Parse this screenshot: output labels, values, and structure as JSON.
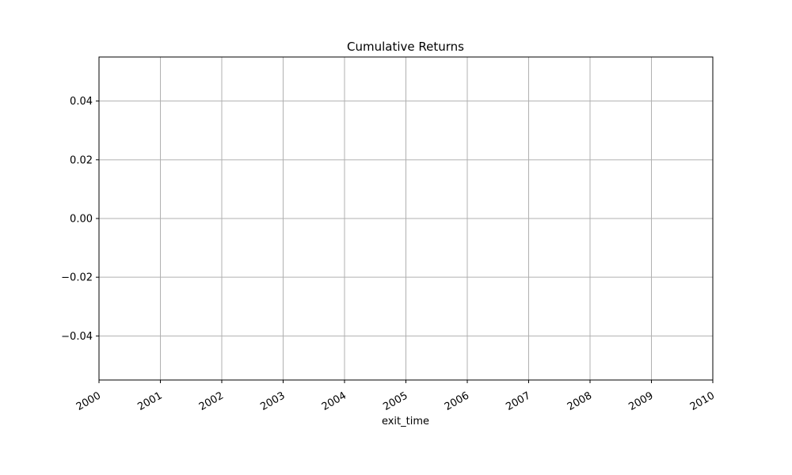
{
  "chart_data": {
    "type": "line",
    "title": "Cumulative Returns",
    "xlabel": "exit_time",
    "ylabel": "",
    "x_ticks": [
      "2000",
      "2001",
      "2002",
      "2003",
      "2004",
      "2005",
      "2006",
      "2007",
      "2008",
      "2009",
      "2010"
    ],
    "xlim": [
      "2000",
      "2010"
    ],
    "y_ticks": [
      0.04,
      0.02,
      0.0,
      -0.02,
      -0.04
    ],
    "y_tick_labels": [
      "0.04",
      "0.02",
      "0.00",
      "−0.02",
      "−0.04"
    ],
    "ylim": [
      -0.055,
      0.055
    ],
    "grid": true,
    "series": [
      {
        "values": []
      }
    ],
    "colors": {
      "grid": "#b0b0b0",
      "axis": "#000000",
      "background": "#ffffff"
    }
  }
}
